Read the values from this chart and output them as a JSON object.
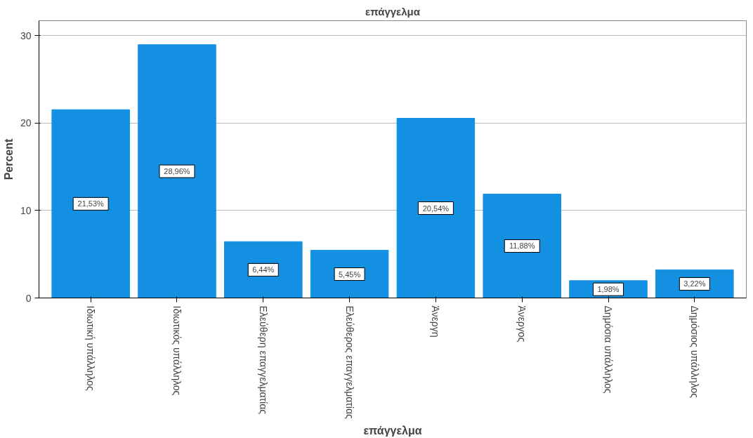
{
  "chart_data": {
    "type": "bar",
    "title": "επάγγελμα",
    "xlabel": "επάγγελμα",
    "ylabel": "Percent",
    "categories": [
      "Ιδιωτική υπάλληλος",
      "Ιδιωτικός υπάλληλος",
      "Ελεύθερη επαγγελματίας",
      "Ελεύθερος επαγγελματίας",
      "Άνεργη",
      "Άνεργος",
      "Δημόσια υπάλληλος",
      "Δημόσιος υπάλληλος"
    ],
    "values": [
      21.53,
      28.96,
      6.44,
      5.45,
      20.54,
      11.88,
      1.98,
      3.22
    ],
    "value_labels": [
      "21,53%",
      "28,96%",
      "6,44%",
      "5,45%",
      "20,54%",
      "11,88%",
      "1,98%",
      "3,22%"
    ],
    "color": "#1490e3",
    "ylim": [
      0,
      31.7
    ],
    "yticks": [
      0,
      10,
      20,
      30
    ],
    "grid": "y"
  }
}
